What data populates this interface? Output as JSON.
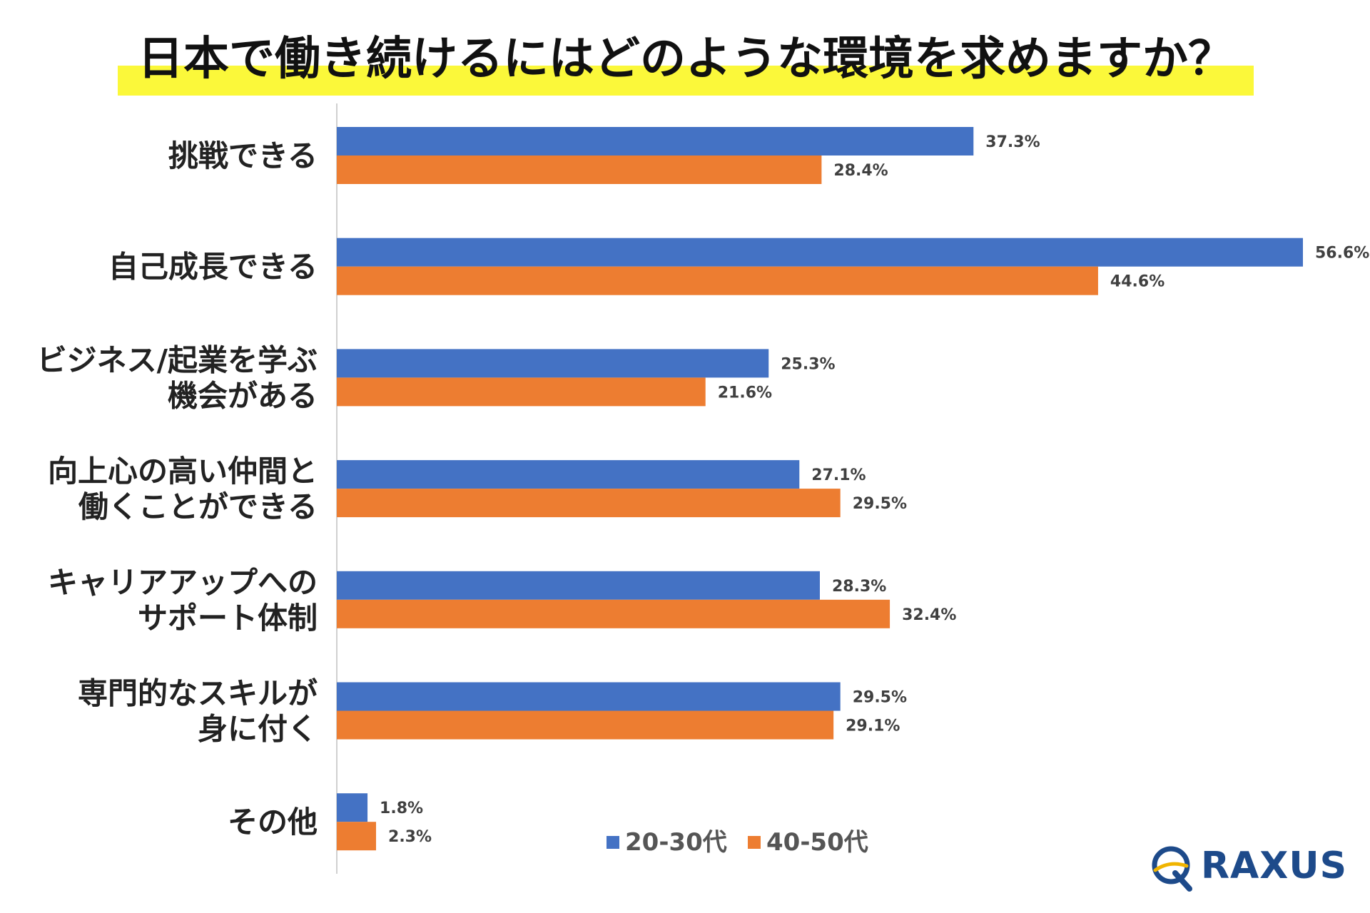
{
  "chart_data": {
    "type": "bar",
    "orientation": "horizontal",
    "title": "日本で働き続けるにはどのような環境を求めますか？",
    "categories": [
      [
        "挑戦できる"
      ],
      [
        "自己成長できる"
      ],
      [
        "ビジネス/起業を学ぶ",
        "機会がある"
      ],
      [
        "向上心の高い仲間と",
        "働くことができる"
      ],
      [
        "キャリアアップへの",
        "サポート体制"
      ],
      [
        "専門的なスキルが",
        "身に付く"
      ],
      [
        "その他"
      ]
    ],
    "series": [
      {
        "name": "20-30代",
        "color": "#4472c4",
        "values": [
          37.3,
          56.6,
          25.3,
          27.1,
          28.3,
          29.5,
          1.8
        ],
        "labels": [
          "37.3%",
          "56.6%",
          "25.3%",
          "27.1%",
          "28.3%",
          "29.5%",
          "1.8%"
        ]
      },
      {
        "name": "40-50代",
        "color": "#ed7d31",
        "values": [
          28.4,
          44.6,
          21.6,
          29.5,
          32.4,
          29.1,
          2.3
        ],
        "labels": [
          "28.4%",
          "44.6%",
          "21.6%",
          "29.5%",
          "32.4%",
          "29.1%",
          "2.3%"
        ]
      }
    ],
    "xlim": [
      0,
      60
    ],
    "grid": false,
    "legend_position": "bottom-center",
    "unit": "%"
  },
  "logo": {
    "text": "RAXUS",
    "color": "#1d4a8a",
    "accent": "#f0b400"
  },
  "colors": {
    "highlight": "#fbf83a",
    "axis": "#d0d0d0"
  }
}
